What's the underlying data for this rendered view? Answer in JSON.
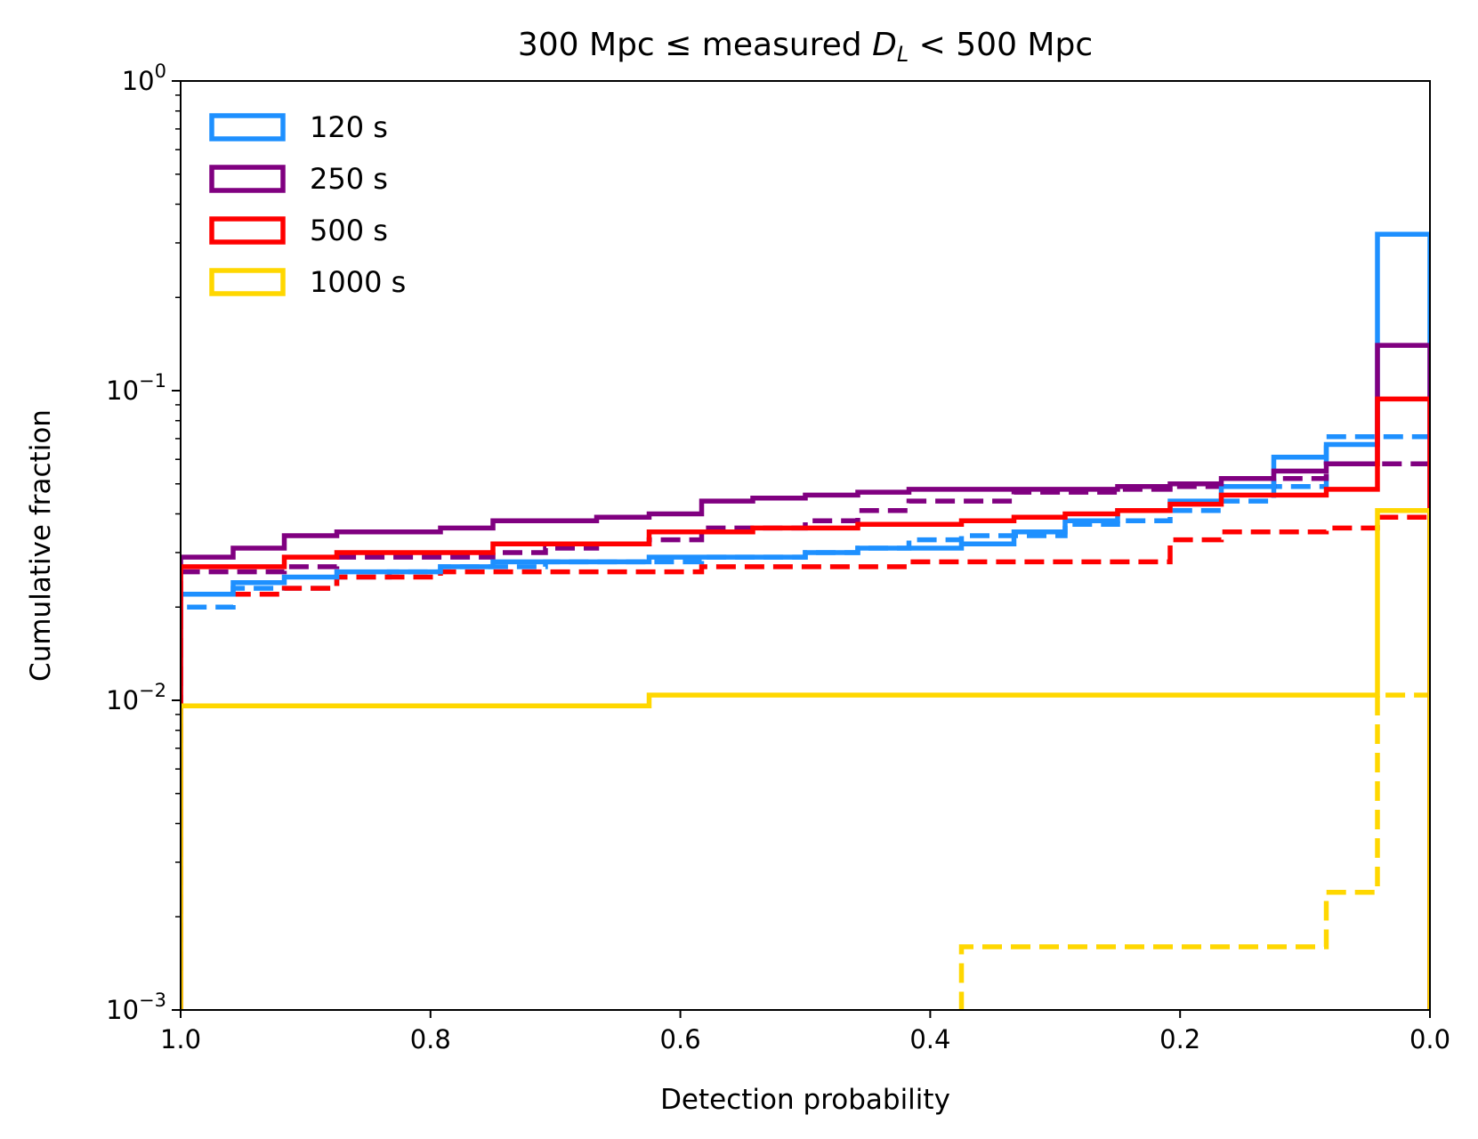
{
  "chart_data": {
    "type": "line",
    "title_parts": {
      "prefix": "300 Mpc ",
      "symbol": "≤",
      "middle": " measured ",
      "var_main": "D",
      "var_sub": "L",
      "suffix": " < 500 Mpc"
    },
    "xlabel": "Detection probability",
    "ylabel": "Cumulative fraction",
    "xlim": [
      1.0,
      0.0
    ],
    "x_inverted": true,
    "ylim": [
      0.001,
      1
    ],
    "yscale": "log",
    "grid": false,
    "legend_position": "upper-left",
    "x_ticks": [
      {
        "value": 1.0,
        "label": "1.0"
      },
      {
        "value": 0.8,
        "label": "0.8"
      },
      {
        "value": 0.6,
        "label": "0.6"
      },
      {
        "value": 0.4,
        "label": "0.4"
      },
      {
        "value": 0.2,
        "label": "0.2"
      },
      {
        "value": 0.0,
        "label": "0.0"
      }
    ],
    "y_ticks": [
      {
        "value": 1,
        "base": "10",
        "exp": "0"
      },
      {
        "value": 0.1,
        "base": "10",
        "exp": "−1"
      },
      {
        "value": 0.01,
        "base": "10",
        "exp": "−2"
      },
      {
        "value": 0.001,
        "base": "10",
        "exp": "−3"
      }
    ],
    "legend": [
      {
        "label": "120 s",
        "color": "#1E90FF"
      },
      {
        "label": "250 s",
        "color": "#800080"
      },
      {
        "label": "500 s",
        "color": "#FF0000"
      },
      {
        "label": "1000 s",
        "color": "#FFD700"
      }
    ],
    "series": [
      {
        "name": "120 s",
        "color": "#1E90FF",
        "style": "dashed",
        "x": [
          1.0,
          0.958,
          0.917,
          0.875,
          0.833,
          0.792,
          0.75,
          0.708,
          0.667,
          0.625,
          0.583,
          0.542,
          0.5,
          0.458,
          0.417,
          0.375,
          0.333,
          0.292,
          0.25,
          0.208,
          0.167,
          0.125,
          0.083,
          0.042
        ],
        "y": [
          0.02,
          0.023,
          0.023,
          0.025,
          0.026,
          0.027,
          0.027,
          0.028,
          0.028,
          0.028,
          0.029,
          0.029,
          0.03,
          0.031,
          0.033,
          0.034,
          0.034,
          0.037,
          0.038,
          0.041,
          0.044,
          0.049,
          0.071,
          0.071
        ]
      },
      {
        "name": "250 s",
        "color": "#800080",
        "style": "dashed",
        "x": [
          1.0,
          0.958,
          0.917,
          0.875,
          0.833,
          0.792,
          0.75,
          0.708,
          0.667,
          0.625,
          0.583,
          0.542,
          0.5,
          0.458,
          0.417,
          0.375,
          0.333,
          0.292,
          0.25,
          0.208,
          0.167,
          0.125,
          0.083,
          0.042
        ],
        "y": [
          0.026,
          0.026,
          0.027,
          0.029,
          0.029,
          0.029,
          0.03,
          0.031,
          0.032,
          0.033,
          0.036,
          0.036,
          0.038,
          0.041,
          0.044,
          0.044,
          0.047,
          0.047,
          0.048,
          0.049,
          0.049,
          0.052,
          0.058,
          0.058
        ]
      },
      {
        "name": "500 s",
        "color": "#FF0000",
        "style": "dashed",
        "x": [
          1.0,
          0.958,
          0.917,
          0.875,
          0.833,
          0.792,
          0.75,
          0.708,
          0.667,
          0.625,
          0.583,
          0.542,
          0.5,
          0.458,
          0.417,
          0.375,
          0.333,
          0.292,
          0.25,
          0.208,
          0.167,
          0.125,
          0.083,
          0.042
        ],
        "y": [
          0.022,
          0.022,
          0.023,
          0.025,
          0.025,
          0.026,
          0.026,
          0.026,
          0.026,
          0.026,
          0.027,
          0.027,
          0.027,
          0.027,
          0.028,
          0.028,
          0.028,
          0.028,
          0.028,
          0.033,
          0.035,
          0.035,
          0.036,
          0.039
        ]
      },
      {
        "name": "1000 s",
        "color": "#FFD700",
        "style": "dashed",
        "x": [
          1.0,
          0.375,
          0.083,
          0.042
        ],
        "y": [
          0.0,
          0.0016,
          0.0024,
          0.0104
        ]
      },
      {
        "name": "120 s",
        "color": "#1E90FF",
        "style": "solid",
        "x": [
          1.0,
          0.958,
          0.917,
          0.875,
          0.833,
          0.792,
          0.75,
          0.708,
          0.667,
          0.625,
          0.583,
          0.542,
          0.5,
          0.458,
          0.417,
          0.375,
          0.333,
          0.292,
          0.25,
          0.208,
          0.167,
          0.125,
          0.083,
          0.042
        ],
        "y": [
          0.022,
          0.024,
          0.025,
          0.026,
          0.026,
          0.027,
          0.028,
          0.028,
          0.028,
          0.029,
          0.029,
          0.029,
          0.03,
          0.031,
          0.031,
          0.032,
          0.035,
          0.038,
          0.041,
          0.044,
          0.049,
          0.061,
          0.067,
          0.32
        ]
      },
      {
        "name": "250 s",
        "color": "#800080",
        "style": "solid",
        "x": [
          1.0,
          0.958,
          0.917,
          0.875,
          0.833,
          0.792,
          0.75,
          0.708,
          0.667,
          0.625,
          0.583,
          0.542,
          0.5,
          0.458,
          0.417,
          0.375,
          0.333,
          0.292,
          0.25,
          0.208,
          0.167,
          0.125,
          0.083,
          0.042
        ],
        "y": [
          0.029,
          0.031,
          0.034,
          0.035,
          0.035,
          0.036,
          0.038,
          0.038,
          0.039,
          0.04,
          0.044,
          0.045,
          0.046,
          0.047,
          0.048,
          0.048,
          0.048,
          0.048,
          0.049,
          0.05,
          0.052,
          0.055,
          0.058,
          0.14
        ]
      },
      {
        "name": "500 s",
        "color": "#FF0000",
        "style": "solid",
        "x": [
          1.0,
          0.958,
          0.917,
          0.875,
          0.833,
          0.792,
          0.75,
          0.708,
          0.667,
          0.625,
          0.583,
          0.542,
          0.5,
          0.458,
          0.417,
          0.375,
          0.333,
          0.292,
          0.25,
          0.208,
          0.167,
          0.125,
          0.083,
          0.042
        ],
        "y": [
          0.027,
          0.027,
          0.029,
          0.03,
          0.03,
          0.03,
          0.032,
          0.032,
          0.032,
          0.035,
          0.035,
          0.036,
          0.036,
          0.037,
          0.037,
          0.038,
          0.039,
          0.04,
          0.041,
          0.043,
          0.046,
          0.046,
          0.048,
          0.094
        ]
      },
      {
        "name": "1000 s",
        "color": "#FFD700",
        "style": "solid",
        "x": [
          1.0,
          0.625,
          0.042
        ],
        "y": [
          0.0096,
          0.0104,
          0.041
        ]
      }
    ]
  }
}
